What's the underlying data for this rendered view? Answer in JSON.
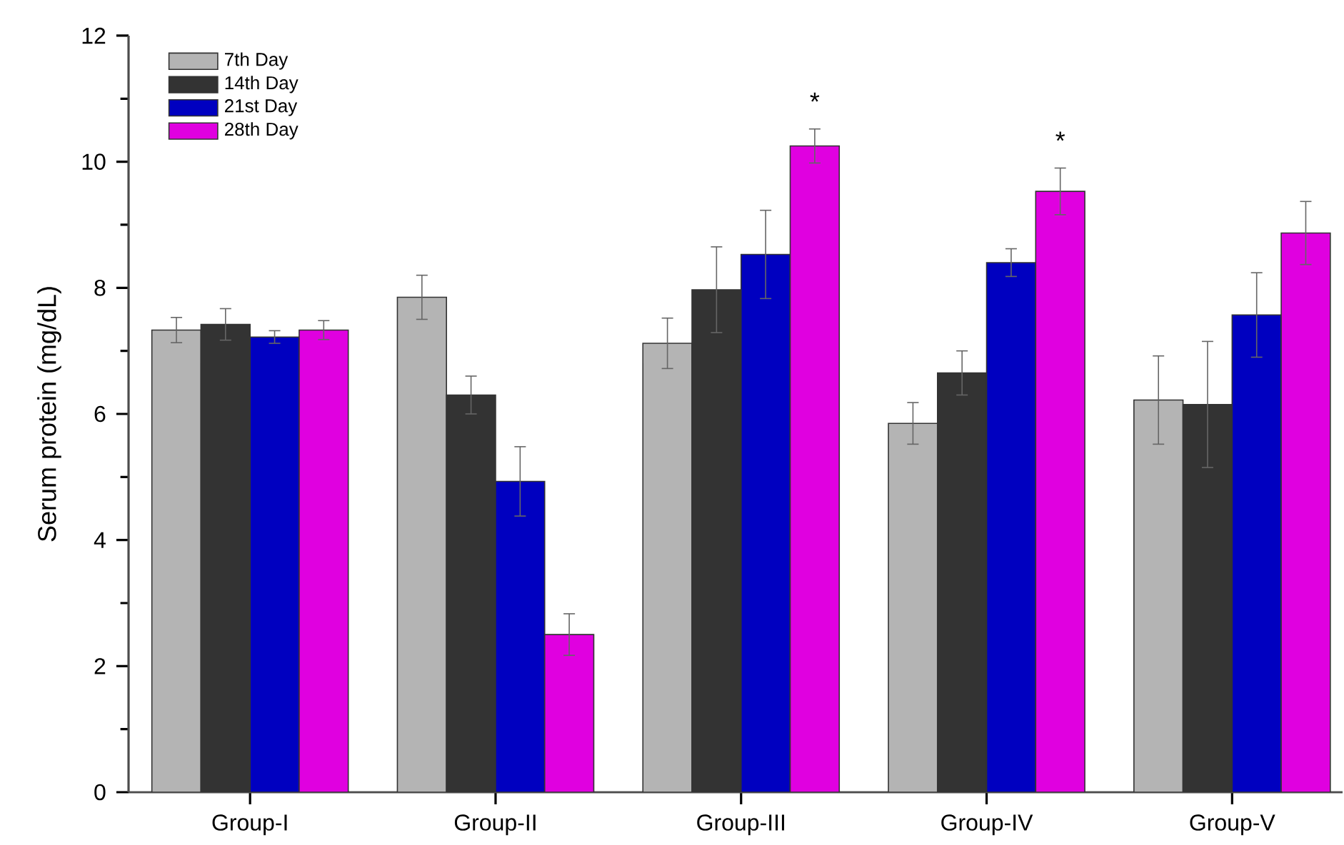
{
  "chart_data": {
    "type": "bar",
    "ylabel": "Serum protein (mg/dL)",
    "categories": [
      "Group-I",
      "Group-II",
      "Group-III",
      "Group-IV",
      "Group-V"
    ],
    "series": [
      {
        "name": "7th Day",
        "color": "#b4b4b4",
        "values": [
          7.33,
          7.85,
          7.12,
          5.85,
          6.22
        ],
        "errors": [
          0.2,
          0.35,
          0.4,
          0.33,
          0.7
        ]
      },
      {
        "name": "14th Day",
        "color": "#333333",
        "values": [
          7.42,
          6.3,
          7.97,
          6.65,
          6.15
        ],
        "errors": [
          0.25,
          0.3,
          0.68,
          0.35,
          1.0
        ]
      },
      {
        "name": "21st Day",
        "color": "#0000c0",
        "values": [
          7.22,
          4.93,
          8.53,
          8.4,
          7.57
        ],
        "errors": [
          0.1,
          0.55,
          0.7,
          0.22,
          0.67
        ]
      },
      {
        "name": "28th Day",
        "color": "#e000e0",
        "values": [
          7.33,
          2.5,
          10.25,
          9.53,
          8.87
        ],
        "errors": [
          0.15,
          0.33,
          0.27,
          0.37,
          0.5
        ]
      }
    ],
    "ylim": [
      0,
      12
    ],
    "yticks": [
      0,
      2,
      4,
      6,
      8,
      10,
      12
    ],
    "legend": "top left",
    "grid": false,
    "annotations": [
      "*",
      "*"
    ]
  }
}
